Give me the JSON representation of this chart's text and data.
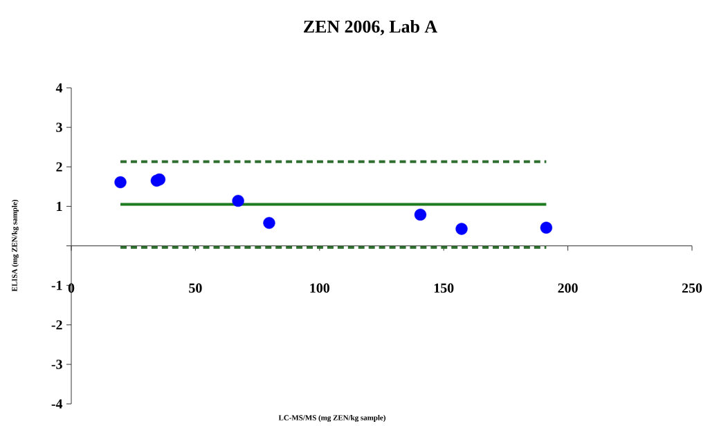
{
  "chart_data": {
    "type": "scatter",
    "title": "ZEN 2006, Lab A",
    "xlabel": "LC-MS/MS (mg ZEN/kg sample)",
    "ylabel": "ELISA (mg ZEN/kg sample)",
    "xlim": [
      0,
      250
    ],
    "ylim": [
      -4,
      4
    ],
    "xticks": [
      0,
      50,
      100,
      150,
      200,
      250
    ],
    "yticks": [
      -4,
      -3,
      -2,
      -1,
      {
        "value": 0,
        "label": null
      },
      1,
      2,
      3,
      4
    ],
    "marker": "circle",
    "series": [
      {
        "color": "#0000ff",
        "x": [
          19.8,
          34.4,
          35.5,
          67.2,
          79.7,
          140.6,
          157.2,
          191.3
        ],
        "values": [
          1.61,
          1.65,
          1.68,
          1.14,
          0.58,
          0.79,
          0.43,
          0.46
        ]
      },
      {
        "type": "line",
        "marker": "none",
        "color": "#1e7a1e",
        "line_style": "solid",
        "x": [
          19.8,
          191.3
        ],
        "values": [
          1.05,
          1.05
        ]
      },
      {
        "type": "line",
        "marker": "none",
        "color": "#2f6f2f",
        "line_style": "dashed",
        "x": [
          19.8,
          191.3
        ],
        "values": [
          2.13,
          2.13
        ]
      },
      {
        "type": "line",
        "marker": "none",
        "color": "#2f6f2f",
        "line_style": "dashed",
        "x": [
          19.8,
          191.3
        ],
        "values": [
          -0.04,
          -0.04
        ]
      }
    ]
  }
}
